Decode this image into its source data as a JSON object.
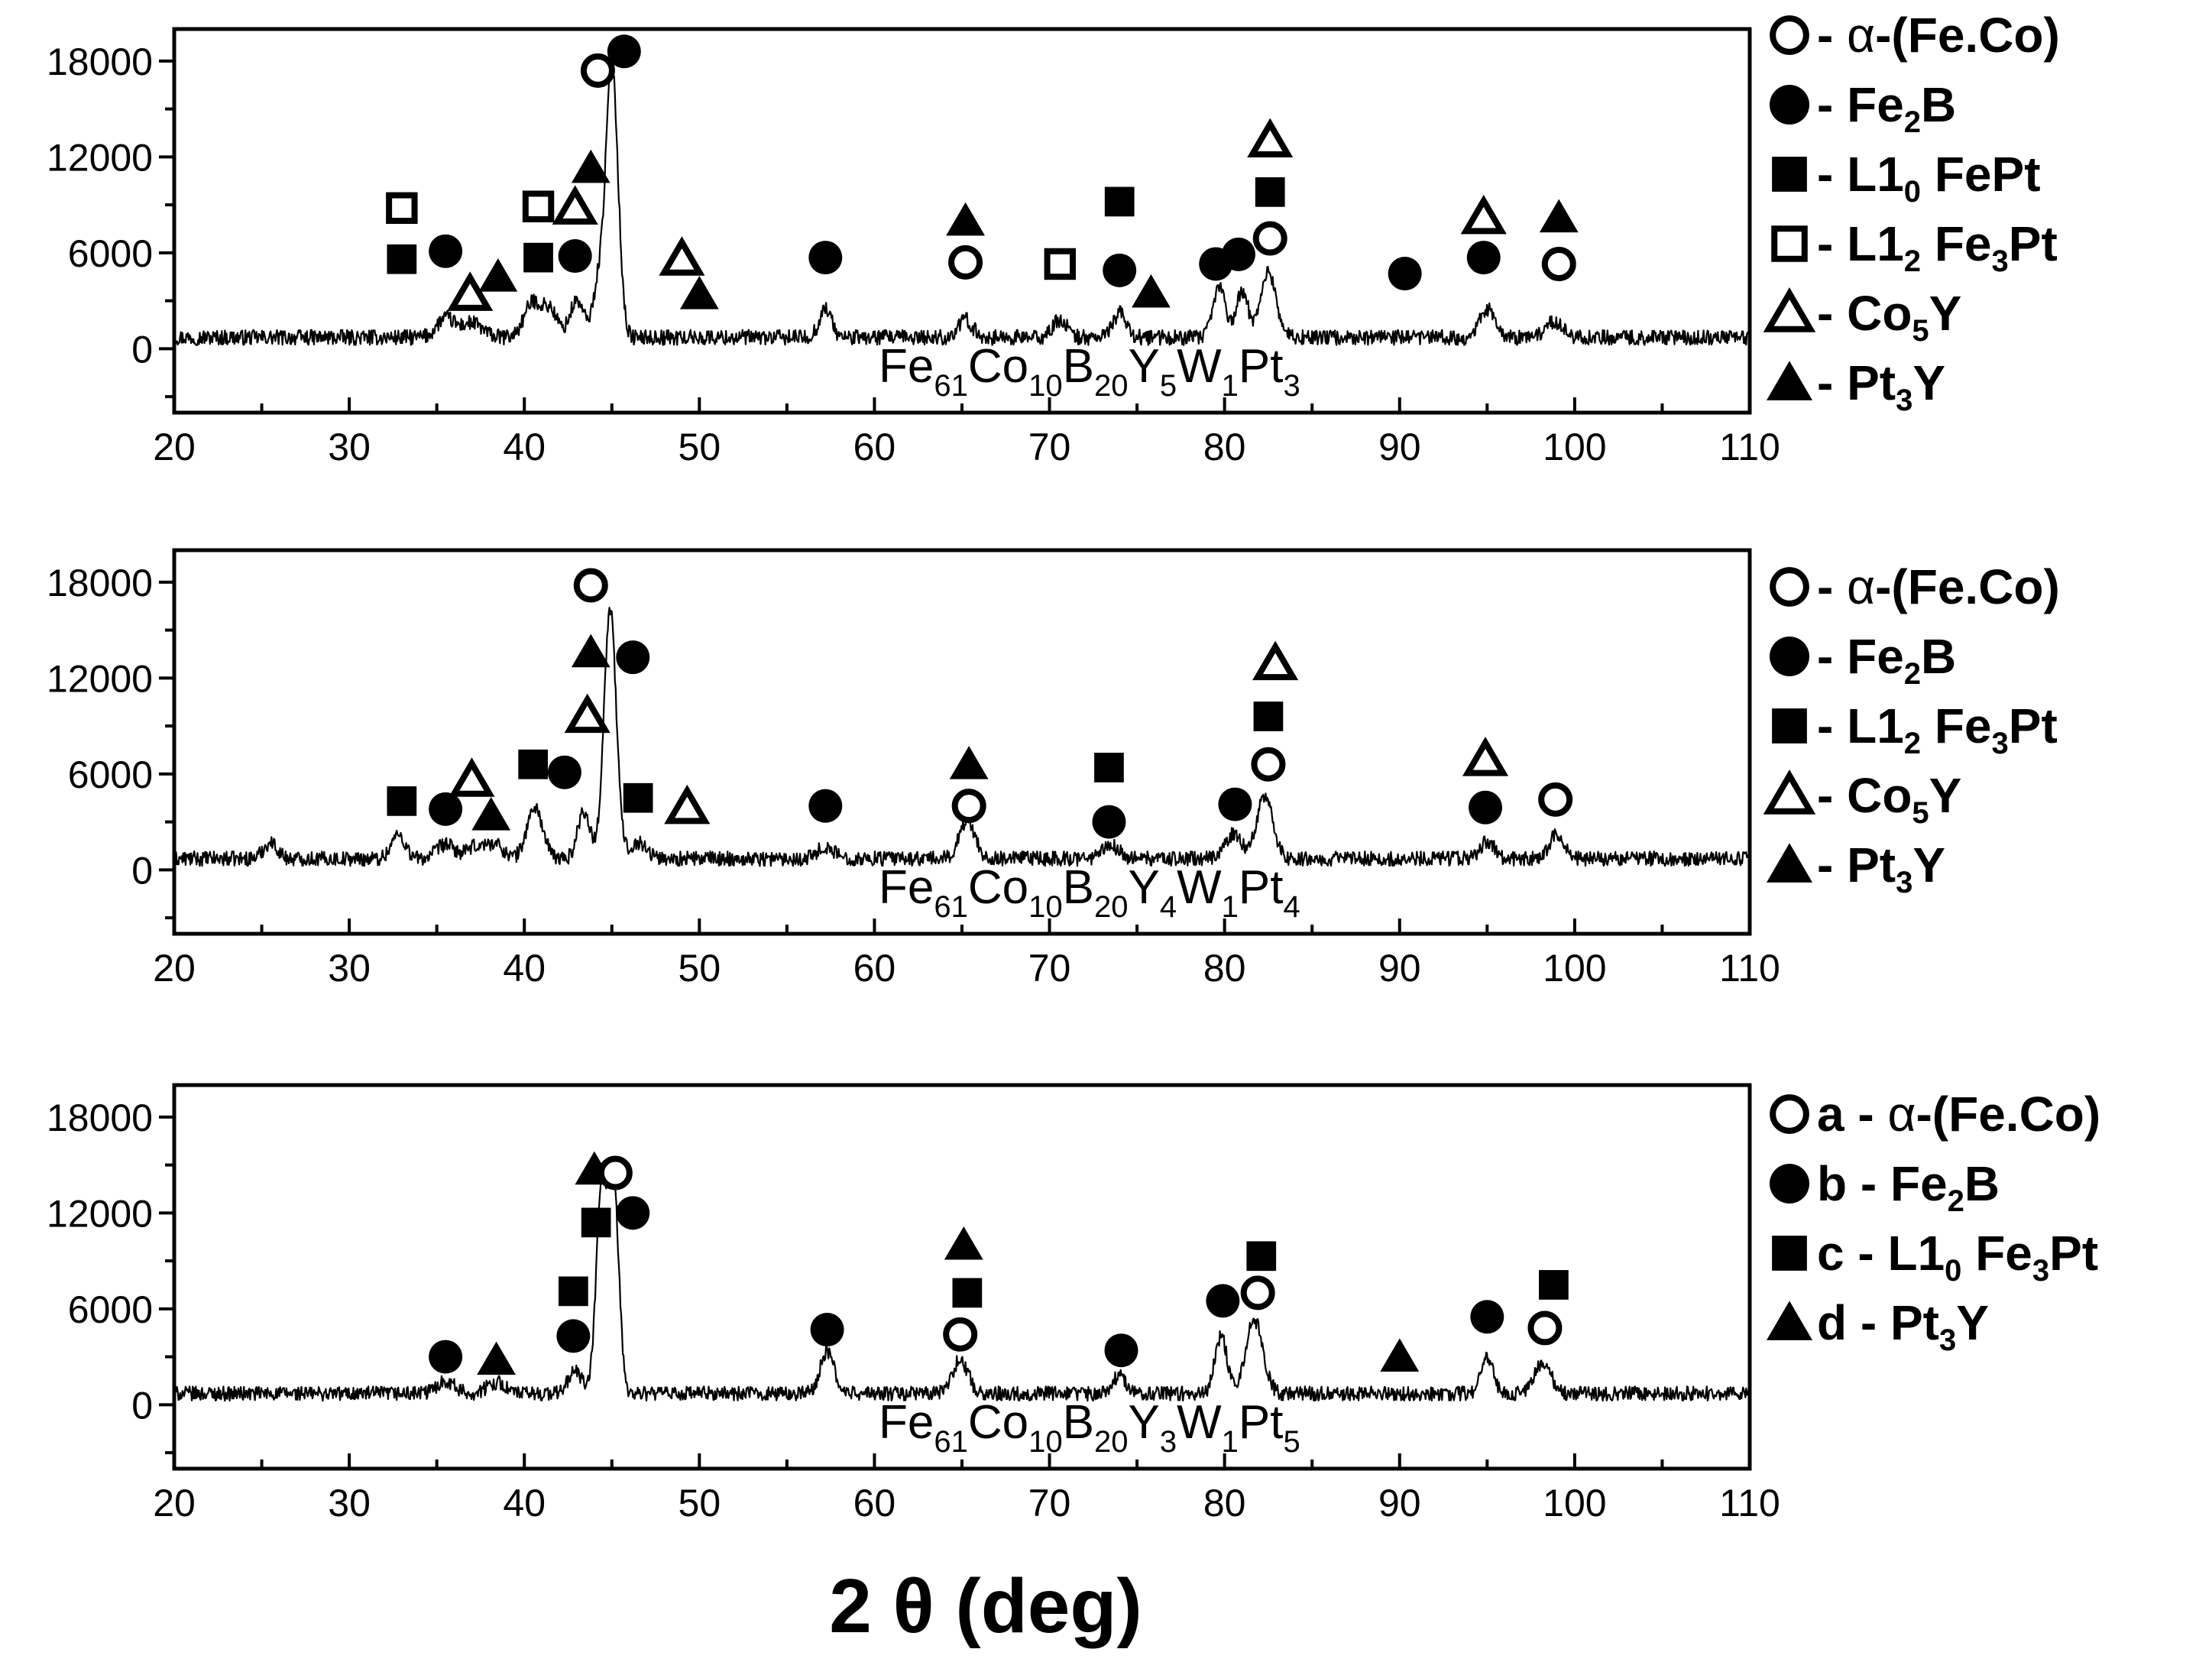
{
  "chart_data": [
    {
      "type": "line",
      "panel": "top",
      "sample_label": [
        [
          "Fe",
          ""
        ],
        [
          "61",
          "sub"
        ],
        [
          "Co",
          ""
        ],
        [
          "10",
          "sub"
        ],
        [
          "B",
          ""
        ],
        [
          "20",
          "sub"
        ],
        [
          "Y",
          ""
        ],
        [
          "5",
          "sub"
        ],
        [
          "W",
          ""
        ],
        [
          "1",
          "sub"
        ],
        [
          "Pt",
          ""
        ],
        [
          "3",
          "sub"
        ]
      ],
      "xlim": [
        20,
        110
      ],
      "ylim": [
        -4000,
        20000
      ],
      "x_ticks": [
        20,
        30,
        40,
        50,
        60,
        70,
        80,
        90,
        100,
        110
      ],
      "y_ticks": [
        0,
        6000,
        12000,
        18000
      ],
      "baseline": 700,
      "noise": 480,
      "peaks": [
        [
          35.5,
          1200,
          0.5
        ],
        [
          37,
          900,
          0.6
        ],
        [
          40.5,
          2200,
          0.5
        ],
        [
          41.5,
          1600,
          0.4
        ],
        [
          43,
          2300,
          0.4
        ],
        [
          44.2,
          3000,
          0.3
        ],
        [
          45,
          17200,
          0.35
        ],
        [
          57.2,
          1800,
          0.35
        ],
        [
          65.2,
          1100,
          0.4
        ],
        [
          70.6,
          1100,
          0.4
        ],
        [
          74,
          1500,
          0.4
        ],
        [
          79.7,
          3200,
          0.35
        ],
        [
          81,
          2800,
          0.35
        ],
        [
          82.5,
          4100,
          0.45
        ],
        [
          95,
          1800,
          0.4
        ],
        [
          98.8,
          1000,
          0.5
        ]
      ],
      "markers": [
        {
          "sym": "sq-fill",
          "x": 33,
          "y": 5600
        },
        {
          "sym": "sq-open",
          "x": 33,
          "y": 8800
        },
        {
          "sym": "ci-fill",
          "x": 35.5,
          "y": 6100
        },
        {
          "sym": "tr-open",
          "x": 36.9,
          "y": 3400
        },
        {
          "sym": "tr-fill",
          "x": 38.5,
          "y": 4500
        },
        {
          "sym": "sq-fill",
          "x": 40.8,
          "y": 5700
        },
        {
          "sym": "sq-open",
          "x": 40.8,
          "y": 8900
        },
        {
          "sym": "ci-fill",
          "x": 42.9,
          "y": 5800
        },
        {
          "sym": "tr-open",
          "x": 42.9,
          "y": 8800
        },
        {
          "sym": "tr-fill",
          "x": 43.8,
          "y": 11300
        },
        {
          "sym": "ci-open",
          "x": 44.2,
          "y": 17400
        },
        {
          "sym": "ci-fill",
          "x": 45.7,
          "y": 18600
        },
        {
          "sym": "tr-open",
          "x": 49,
          "y": 5600
        },
        {
          "sym": "tr-fill",
          "x": 50,
          "y": 3400
        },
        {
          "sym": "ci-fill",
          "x": 57.2,
          "y": 5700
        },
        {
          "sym": "tr-fill",
          "x": 65.2,
          "y": 8000
        },
        {
          "sym": "ci-open",
          "x": 65.2,
          "y": 5400
        },
        {
          "sym": "sq-open",
          "x": 70.6,
          "y": 5300
        },
        {
          "sym": "sq-fill",
          "x": 74,
          "y": 9200
        },
        {
          "sym": "ci-fill",
          "x": 74,
          "y": 4900
        },
        {
          "sym": "tr-fill",
          "x": 75.8,
          "y": 3500
        },
        {
          "sym": "ci-fill",
          "x": 79.5,
          "y": 5300
        },
        {
          "sym": "ci-fill",
          "x": 80.8,
          "y": 5900
        },
        {
          "sym": "tr-open",
          "x": 82.6,
          "y": 13000
        },
        {
          "sym": "sq-fill",
          "x": 82.6,
          "y": 9800
        },
        {
          "sym": "ci-open",
          "x": 82.6,
          "y": 6900
        },
        {
          "sym": "ci-fill",
          "x": 90.3,
          "y": 4700
        },
        {
          "sym": "tr-open",
          "x": 94.8,
          "y": 8200
        },
        {
          "sym": "ci-fill",
          "x": 94.8,
          "y": 5700
        },
        {
          "sym": "tr-fill",
          "x": 99.1,
          "y": 8200
        },
        {
          "sym": "ci-open",
          "x": 99.1,
          "y": 5300
        }
      ],
      "legend": [
        {
          "sym": "ci-open",
          "parts": [
            [
              "- ",
              ""
            ],
            [
              "α",
              "alpha"
            ],
            [
              "-(Fe.Co)",
              ""
            ]
          ]
        },
        {
          "sym": "ci-fill",
          "parts": [
            [
              "- Fe",
              ""
            ],
            [
              "2",
              "sub"
            ],
            [
              "B",
              ""
            ]
          ]
        },
        {
          "sym": "sq-fill",
          "parts": [
            [
              "- L1",
              ""
            ],
            [
              "0",
              "sub"
            ],
            [
              " FePt",
              ""
            ]
          ]
        },
        {
          "sym": "sq-open",
          "parts": [
            [
              "- L1",
              ""
            ],
            [
              "2",
              "sub"
            ],
            [
              " Fe",
              ""
            ],
            [
              "3",
              "sub"
            ],
            [
              "Pt",
              ""
            ]
          ]
        },
        {
          "sym": "tr-open",
          "parts": [
            [
              "- Co",
              ""
            ],
            [
              "5",
              "sub"
            ],
            [
              "Y",
              ""
            ]
          ]
        },
        {
          "sym": "tr-fill",
          "parts": [
            [
              "- Pt",
              ""
            ],
            [
              "3",
              "sub"
            ],
            [
              "Y",
              ""
            ]
          ]
        }
      ]
    },
    {
      "type": "line",
      "panel": "middle",
      "sample_label": [
        [
          "Fe",
          ""
        ],
        [
          "61",
          "sub"
        ],
        [
          "Co",
          ""
        ],
        [
          "10",
          "sub"
        ],
        [
          "B",
          ""
        ],
        [
          "20",
          "sub"
        ],
        [
          "Y",
          ""
        ],
        [
          "4",
          "sub"
        ],
        [
          "W",
          ""
        ],
        [
          "1",
          "sub"
        ],
        [
          "Pt",
          ""
        ],
        [
          "4",
          "sub"
        ]
      ],
      "xlim": [
        20,
        110
      ],
      "ylim": [
        -4000,
        20000
      ],
      "x_ticks": [
        20,
        30,
        40,
        50,
        60,
        70,
        80,
        90,
        100,
        110
      ],
      "y_ticks": [
        0,
        6000,
        12000,
        18000
      ],
      "baseline": 700,
      "noise": 460,
      "peaks": [
        [
          25.5,
          1000,
          0.4
        ],
        [
          32.8,
          1500,
          0.4
        ],
        [
          35.5,
          900,
          0.5
        ],
        [
          37.2,
          700,
          0.5
        ],
        [
          38.3,
          900,
          0.5
        ],
        [
          40.6,
          3200,
          0.45
        ],
        [
          43.4,
          3000,
          0.35
        ],
        [
          44.9,
          15600,
          0.35
        ],
        [
          46.5,
          1000,
          0.5
        ],
        [
          57.2,
          700,
          0.5
        ],
        [
          65.3,
          2400,
          0.45
        ],
        [
          73.5,
          800,
          0.5
        ],
        [
          80.5,
          1500,
          0.5
        ],
        [
          82.3,
          4000,
          0.45
        ],
        [
          95,
          1100,
          0.4
        ],
        [
          99,
          1600,
          0.4
        ]
      ],
      "markers": [
        {
          "sym": "sq-fill",
          "x": 33,
          "y": 4300
        },
        {
          "sym": "ci-fill",
          "x": 35.5,
          "y": 3800
        },
        {
          "sym": "tr-open",
          "x": 37,
          "y": 5600
        },
        {
          "sym": "tr-fill",
          "x": 38.1,
          "y": 3400
        },
        {
          "sym": "sq-fill",
          "x": 40.5,
          "y": 6600
        },
        {
          "sym": "ci-fill",
          "x": 42.3,
          "y": 6100
        },
        {
          "sym": "tr-open",
          "x": 43.6,
          "y": 9600
        },
        {
          "sym": "tr-fill",
          "x": 43.8,
          "y": 13600
        },
        {
          "sym": "ci-open",
          "x": 43.8,
          "y": 17800
        },
        {
          "sym": "ci-fill",
          "x": 46.2,
          "y": 13300
        },
        {
          "sym": "sq-fill",
          "x": 46.5,
          "y": 4500
        },
        {
          "sym": "tr-open",
          "x": 49.3,
          "y": 3900
        },
        {
          "sym": "ci-fill",
          "x": 57.2,
          "y": 4000
        },
        {
          "sym": "tr-fill",
          "x": 65.4,
          "y": 6600
        },
        {
          "sym": "ci-open",
          "x": 65.4,
          "y": 4000
        },
        {
          "sym": "sq-fill",
          "x": 73.4,
          "y": 6400
        },
        {
          "sym": "ci-fill",
          "x": 73.4,
          "y": 3000
        },
        {
          "sym": "ci-fill",
          "x": 80.6,
          "y": 4100
        },
        {
          "sym": "tr-open",
          "x": 82.9,
          "y": 12900
        },
        {
          "sym": "sq-fill",
          "x": 82.5,
          "y": 9600
        },
        {
          "sym": "ci-open",
          "x": 82.5,
          "y": 6600
        },
        {
          "sym": "tr-open",
          "x": 94.9,
          "y": 6900
        },
        {
          "sym": "ci-fill",
          "x": 94.9,
          "y": 3900
        },
        {
          "sym": "ci-open",
          "x": 98.9,
          "y": 4400
        }
      ],
      "legend": [
        {
          "sym": "ci-open",
          "parts": [
            [
              "- ",
              ""
            ],
            [
              "α",
              "alpha"
            ],
            [
              "-(Fe.Co)",
              ""
            ]
          ]
        },
        {
          "sym": "ci-fill",
          "parts": [
            [
              "- Fe",
              ""
            ],
            [
              "2",
              "sub"
            ],
            [
              "B",
              ""
            ]
          ]
        },
        {
          "sym": "sq-fill",
          "parts": [
            [
              "- L1",
              ""
            ],
            [
              "2",
              "sub"
            ],
            [
              " Fe",
              ""
            ],
            [
              "3",
              "sub"
            ],
            [
              "Pt",
              ""
            ]
          ]
        },
        {
          "sym": "tr-open",
          "parts": [
            [
              "- Co",
              ""
            ],
            [
              "5",
              "sub"
            ],
            [
              "Y",
              ""
            ]
          ]
        },
        {
          "sym": "tr-fill",
          "parts": [
            [
              "- Pt",
              ""
            ],
            [
              "3",
              "sub"
            ],
            [
              "Y",
              ""
            ]
          ]
        }
      ]
    },
    {
      "type": "line",
      "panel": "bottom",
      "sample_label": [
        [
          "Fe",
          ""
        ],
        [
          "61",
          "sub"
        ],
        [
          "Co",
          ""
        ],
        [
          "10",
          "sub"
        ],
        [
          "B",
          ""
        ],
        [
          "20",
          "sub"
        ],
        [
          "Y",
          ""
        ],
        [
          "3",
          "sub"
        ],
        [
          "W",
          ""
        ],
        [
          "1",
          "sub"
        ],
        [
          "Pt",
          ""
        ],
        [
          "5",
          "sub"
        ]
      ],
      "xlim": [
        20,
        110
      ],
      "ylim": [
        -4000,
        20000
      ],
      "x_ticks": [
        20,
        30,
        40,
        50,
        60,
        70,
        80,
        90,
        100,
        110
      ],
      "y_ticks": [
        0,
        6000,
        12000,
        18000
      ],
      "baseline": 700,
      "noise": 450,
      "peaks": [
        [
          35.5,
          800,
          0.5
        ],
        [
          38.4,
          700,
          0.5
        ],
        [
          42.9,
          1400,
          0.4
        ],
        [
          44.4,
          12500,
          0.3
        ],
        [
          45.1,
          13000,
          0.3
        ],
        [
          57.3,
          2600,
          0.4
        ],
        [
          64.9,
          2100,
          0.45
        ],
        [
          74,
          1100,
          0.4
        ],
        [
          79.8,
          3600,
          0.35
        ],
        [
          81.7,
          4600,
          0.5
        ],
        [
          95,
          2200,
          0.35
        ],
        [
          98.2,
          2000,
          0.45
        ]
      ],
      "markers": [
        {
          "sym": "ci-fill",
          "x": 35.5,
          "y": 3000
        },
        {
          "sym": "tr-fill",
          "x": 38.4,
          "y": 2800
        },
        {
          "sym": "sq-fill",
          "x": 42.8,
          "y": 7100
        },
        {
          "sym": "ci-fill",
          "x": 42.8,
          "y": 4300
        },
        {
          "sym": "tr-fill",
          "x": 44,
          "y": 14700
        },
        {
          "sym": "sq-fill",
          "x": 44.1,
          "y": 11400
        },
        {
          "sym": "ci-open",
          "x": 45.2,
          "y": 14500
        },
        {
          "sym": "ci-fill",
          "x": 46.2,
          "y": 12000
        },
        {
          "sym": "ci-fill",
          "x": 57.3,
          "y": 4700
        },
        {
          "sym": "tr-fill",
          "x": 65.1,
          "y": 10000
        },
        {
          "sym": "sq-fill",
          "x": 65.3,
          "y": 7000
        },
        {
          "sym": "ci-open",
          "x": 64.9,
          "y": 4400
        },
        {
          "sym": "ci-fill",
          "x": 74.1,
          "y": 3400
        },
        {
          "sym": "ci-fill",
          "x": 79.9,
          "y": 6500
        },
        {
          "sym": "ci-open",
          "x": 81.9,
          "y": 7000
        },
        {
          "sym": "sq-fill",
          "x": 82.1,
          "y": 9300
        },
        {
          "sym": "tr-fill",
          "x": 90,
          "y": 3000
        },
        {
          "sym": "ci-fill",
          "x": 95,
          "y": 5500
        },
        {
          "sym": "sq-fill",
          "x": 98.8,
          "y": 7500
        },
        {
          "sym": "ci-open",
          "x": 98.3,
          "y": 4800
        }
      ],
      "legend": [
        {
          "sym": "ci-open",
          "parts": [
            [
              "a - ",
              ""
            ],
            [
              "α",
              "alpha"
            ],
            [
              "-(Fe.Co)",
              ""
            ]
          ]
        },
        {
          "sym": "ci-fill",
          "parts": [
            [
              "b - Fe",
              ""
            ],
            [
              "2",
              "sub"
            ],
            [
              "B",
              ""
            ]
          ]
        },
        {
          "sym": "sq-fill",
          "parts": [
            [
              "c - L1",
              ""
            ],
            [
              "0",
              "sub"
            ],
            [
              " Fe",
              ""
            ],
            [
              "3",
              "sub"
            ],
            [
              "Pt",
              ""
            ]
          ]
        },
        {
          "sym": "tr-fill",
          "parts": [
            [
              "d - Pt",
              ""
            ],
            [
              "3",
              "sub"
            ],
            [
              "Y",
              ""
            ]
          ]
        }
      ]
    }
  ],
  "x_axis_label": "2 θ (deg)",
  "symbol_names": {
    "ci-open": "open-circle-marker",
    "ci-fill": "filled-circle-marker",
    "sq-fill": "filled-square-marker",
    "sq-open": "open-square-marker",
    "tr-open": "open-triangle-marker",
    "tr-fill": "filled-triangle-marker"
  }
}
